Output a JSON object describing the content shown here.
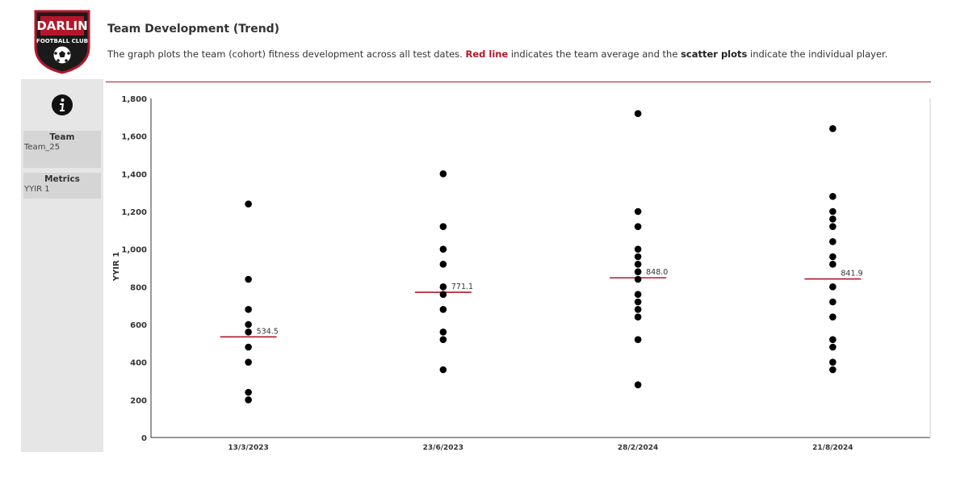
{
  "header": {
    "logo_text_top": "DARLIN",
    "logo_text_bottom": "FOOTBALL CLUB",
    "title": "Team Development (Trend)",
    "subtitle_part1": "The graph plots the team (cohort) fitness development across all test dates. ",
    "subtitle_red": "Red line",
    "subtitle_part2": " indicates the team average and the ",
    "subtitle_bold": "scatter plots",
    "subtitle_part3": " indicate the individual player."
  },
  "sidebar": {
    "info_icon": "info-icon",
    "team_label": "Team",
    "team_value": "Team_25",
    "metrics_label": "Metrics",
    "metrics_value": "YYIR 1"
  },
  "colors": {
    "accent": "#b3172b",
    "point": "#000000",
    "sidebar_bg": "#e6e6e6",
    "filter_bg": "#d5d5d5"
  },
  "chart_data": {
    "type": "scatter",
    "title": "",
    "xlabel": "",
    "ylabel": "YYIR 1",
    "ylim": [
      0,
      1800
    ],
    "yticks": [
      0,
      200,
      400,
      600,
      800,
      1000,
      1200,
      1400,
      1600,
      1800
    ],
    "ytick_labels": [
      "0",
      "200",
      "400",
      "600",
      "800",
      "1,000",
      "1,200",
      "1,400",
      "1,600",
      "1,800"
    ],
    "categories": [
      "13/3/2023",
      "23/6/2023",
      "28/2/2024",
      "21/8/2024"
    ],
    "series": [
      {
        "points": [
          1240,
          840,
          680,
          600,
          560,
          480,
          400,
          240,
          200
        ]
      },
      {
        "points": [
          1400,
          1120,
          1000,
          920,
          800,
          760,
          680,
          560,
          520,
          360
        ]
      },
      {
        "points": [
          1720,
          1200,
          1120,
          1000,
          960,
          920,
          880,
          840,
          760,
          720,
          680,
          640,
          520,
          280
        ]
      },
      {
        "points": [
          1640,
          1280,
          1200,
          1160,
          1120,
          1040,
          960,
          920,
          800,
          720,
          640,
          520,
          480,
          400,
          360
        ]
      }
    ],
    "averages": [
      534.5,
      771.1,
      848.0,
      841.9
    ],
    "average_labels": [
      "534.5",
      "771.1",
      "848.0",
      "841.9"
    ],
    "grid": false
  }
}
